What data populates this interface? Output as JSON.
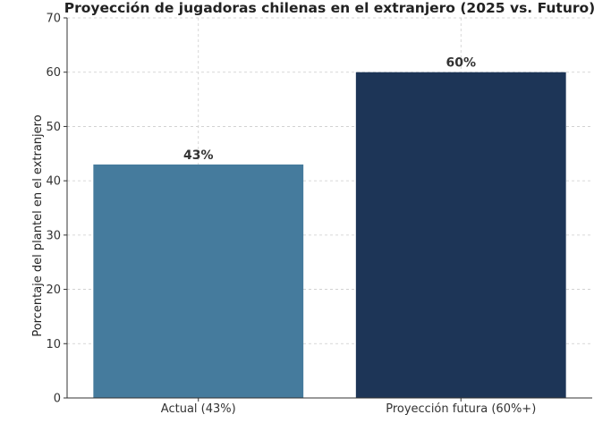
{
  "chart_data": {
    "type": "bar",
    "title": "Proyección de jugadoras chilenas en el extranjero (2025 vs. Futuro)",
    "xlabel": "",
    "ylabel": "Porcentaje del plantel en el extranjero",
    "categories": [
      "Actual (43%)",
      "Proyección futura (60%+)"
    ],
    "values": [
      43,
      60
    ],
    "data_labels": [
      "43%",
      "60%"
    ],
    "colors": [
      "#457b9d",
      "#1d3557"
    ],
    "ylim": [
      0,
      70
    ],
    "yticks": [
      0,
      10,
      20,
      30,
      40,
      50,
      60,
      70
    ],
    "grid": true
  }
}
